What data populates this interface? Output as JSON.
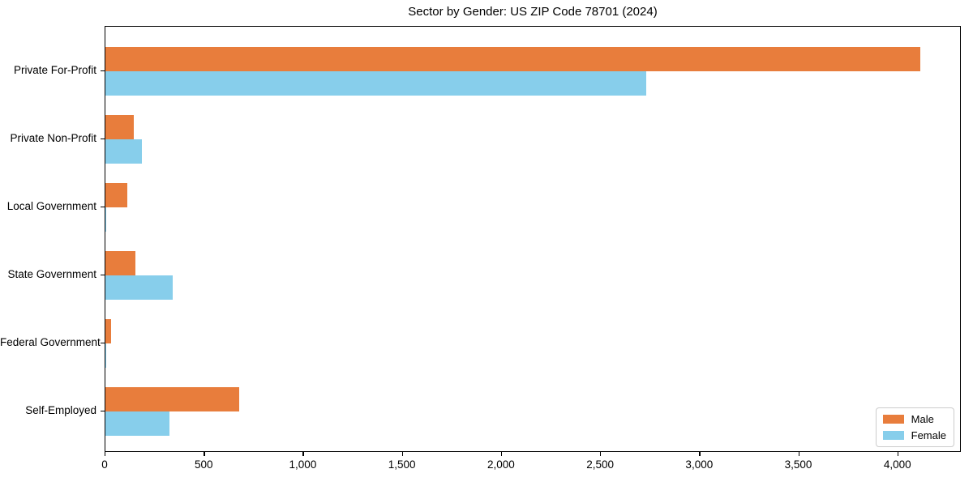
{
  "chart_data": {
    "type": "bar",
    "orientation": "horizontal",
    "title": "Sector by Gender: US ZIP Code 78701 (2024)",
    "categories": [
      "Private For-Profit",
      "Private Non-Profit",
      "Local Government",
      "State Government",
      "Federal Government",
      "Self-Employed"
    ],
    "series": [
      {
        "name": "Male",
        "color": "#e87d3c",
        "values": [
          4110,
          145,
          110,
          150,
          30,
          675
        ]
      },
      {
        "name": "Female",
        "color": "#87ceeb",
        "values": [
          2730,
          185,
          5,
          340,
          4,
          325
        ]
      }
    ],
    "xlim": [
      0,
      4320
    ],
    "x_ticks": [
      0,
      500,
      1000,
      1500,
      2000,
      2500,
      3000,
      3500,
      4000
    ],
    "x_tick_labels": [
      "0",
      "500",
      "1,000",
      "1,500",
      "2,000",
      "2,500",
      "3,000",
      "3,500",
      "4,000"
    ],
    "grid": false,
    "legend_position": "lower right",
    "background_color": "#ffffff",
    "spine_color": "#000000"
  }
}
